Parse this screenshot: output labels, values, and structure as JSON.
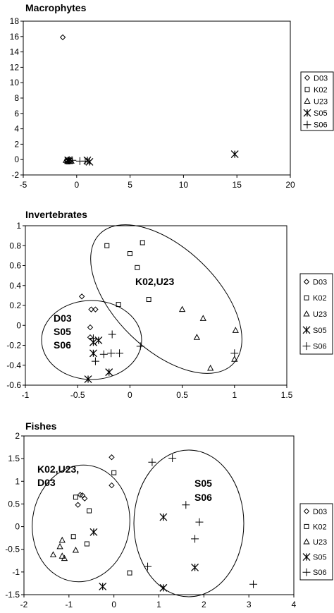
{
  "chart_data": [
    {
      "type": "scatter",
      "title": "Macrophytes",
      "xlim": [
        -5,
        20
      ],
      "ylim": [
        -2,
        18
      ],
      "xticks": [
        -5,
        0,
        5,
        10,
        15,
        20
      ],
      "yticks": [
        -2,
        0,
        2,
        4,
        6,
        8,
        10,
        12,
        14,
        16,
        18
      ],
      "grid": false,
      "legend": "right",
      "series": [
        {
          "name": "D03",
          "marker": "diamond",
          "points": [
            [
              -1.3,
              15.9
            ],
            [
              -0.9,
              -0.1
            ],
            [
              -0.7,
              -0.2
            ]
          ]
        },
        {
          "name": "K02",
          "marker": "square",
          "points": [
            [
              -0.9,
              -0.2
            ],
            [
              -0.6,
              -0.1
            ],
            [
              -0.8,
              -0.3
            ]
          ]
        },
        {
          "name": "U23",
          "marker": "triangle",
          "points": [
            [
              -1.0,
              -0.1
            ],
            [
              -0.7,
              0.0
            ],
            [
              -0.5,
              -0.2
            ]
          ]
        },
        {
          "name": "S05",
          "marker": "star",
          "points": [
            [
              14.8,
              0.7
            ],
            [
              1.2,
              -0.3
            ],
            [
              1.0,
              -0.1
            ],
            [
              -0.8,
              -0.1
            ]
          ]
        },
        {
          "name": "S06",
          "marker": "plus",
          "points": [
            [
              0.3,
              -0.2
            ],
            [
              0.8,
              -0.2
            ],
            [
              -0.4,
              -0.1
            ]
          ]
        }
      ],
      "annotations": []
    },
    {
      "type": "scatter",
      "title": "Invertebrates",
      "xlim": [
        -1,
        1.5
      ],
      "ylim": [
        -0.6,
        1.0
      ],
      "xticks": [
        -1,
        -0.5,
        0,
        0.5,
        1,
        1.5
      ],
      "yticks": [
        -0.6,
        -0.4,
        -0.2,
        0,
        0.2,
        0.4,
        0.6,
        0.8,
        1
      ],
      "grid": false,
      "legend": "right",
      "series": [
        {
          "name": "D03",
          "marker": "diamond",
          "points": [
            [
              -0.46,
              0.29
            ],
            [
              -0.37,
              0.16
            ],
            [
              -0.38,
              -0.02
            ],
            [
              -0.33,
              0.16
            ],
            [
              -0.38,
              -0.12
            ]
          ]
        },
        {
          "name": "K02",
          "marker": "square",
          "points": [
            [
              -0.22,
              0.8
            ],
            [
              0.0,
              0.72
            ],
            [
              0.07,
              0.58
            ],
            [
              0.12,
              0.83
            ],
            [
              0.18,
              0.26
            ],
            [
              -0.11,
              0.21
            ]
          ]
        },
        {
          "name": "U23",
          "marker": "triangle",
          "points": [
            [
              0.5,
              0.16
            ],
            [
              0.7,
              0.07
            ],
            [
              0.64,
              -0.12
            ],
            [
              0.77,
              -0.43
            ],
            [
              1.01,
              -0.05
            ],
            [
              1.0,
              -0.34
            ]
          ]
        },
        {
          "name": "S05",
          "marker": "star",
          "points": [
            [
              -0.4,
              -0.54
            ],
            [
              -0.35,
              -0.28
            ],
            [
              -0.35,
              -0.17
            ],
            [
              -0.3,
              -0.15
            ],
            [
              -0.2,
              -0.47
            ]
          ]
        },
        {
          "name": "S06",
          "marker": "plus",
          "points": [
            [
              -0.33,
              -0.36
            ],
            [
              -0.25,
              -0.29
            ],
            [
              -0.17,
              -0.09
            ],
            [
              -0.1,
              -0.28
            ],
            [
              0.1,
              -0.21
            ],
            [
              1.0,
              -0.28
            ],
            [
              -0.35,
              -0.13
            ],
            [
              -0.18,
              -0.28
            ]
          ]
        }
      ],
      "annotations": [
        {
          "lines": [
            "K02,U23"
          ]
        },
        {
          "lines": [
            "D03",
            "S05",
            "S06"
          ]
        }
      ]
    },
    {
      "type": "scatter",
      "title": "Fishes",
      "xlim": [
        -2,
        4
      ],
      "ylim": [
        -1.5,
        2.0
      ],
      "xticks": [
        -2,
        -1,
        0,
        1,
        2,
        3,
        4
      ],
      "yticks": [
        -1.5,
        -1,
        -0.5,
        0,
        0.5,
        1,
        1.5,
        2
      ],
      "grid": false,
      "legend": "right",
      "series": [
        {
          "name": "D03",
          "marker": "diamond",
          "points": [
            [
              -0.05,
              1.53
            ],
            [
              -0.05,
              0.91
            ],
            [
              -0.8,
              0.48
            ],
            [
              -0.75,
              0.7
            ],
            [
              -0.65,
              0.62
            ],
            [
              -0.7,
              0.69
            ]
          ]
        },
        {
          "name": "K02",
          "marker": "square",
          "points": [
            [
              0.0,
              1.19
            ],
            [
              -0.55,
              0.35
            ],
            [
              -0.85,
              0.65
            ],
            [
              -0.9,
              -0.22
            ],
            [
              -0.6,
              -0.38
            ],
            [
              0.35,
              -1.02
            ]
          ]
        },
        {
          "name": "U23",
          "marker": "triangle",
          "points": [
            [
              -1.35,
              -0.62
            ],
            [
              -1.15,
              -0.3
            ],
            [
              -1.15,
              -0.65
            ],
            [
              -1.2,
              -0.44
            ],
            [
              -0.85,
              -0.52
            ],
            [
              -1.1,
              -0.7
            ]
          ]
        },
        {
          "name": "S05",
          "marker": "star",
          "points": [
            [
              -0.45,
              -0.12
            ],
            [
              -0.25,
              -1.32
            ],
            [
              1.1,
              0.21
            ],
            [
              1.1,
              -1.35
            ],
            [
              1.8,
              -0.9
            ]
          ]
        },
        {
          "name": "S06",
          "marker": "plus",
          "points": [
            [
              0.85,
              1.42
            ],
            [
              1.3,
              1.51
            ],
            [
              1.6,
              0.48
            ],
            [
              1.9,
              0.1
            ],
            [
              1.8,
              -0.27
            ],
            [
              0.75,
              -0.88
            ],
            [
              3.1,
              -1.27
            ]
          ]
        }
      ],
      "annotations": [
        {
          "lines": [
            "K02,U23,",
            "D03"
          ]
        },
        {
          "lines": [
            "S05",
            "S06"
          ]
        }
      ]
    }
  ]
}
